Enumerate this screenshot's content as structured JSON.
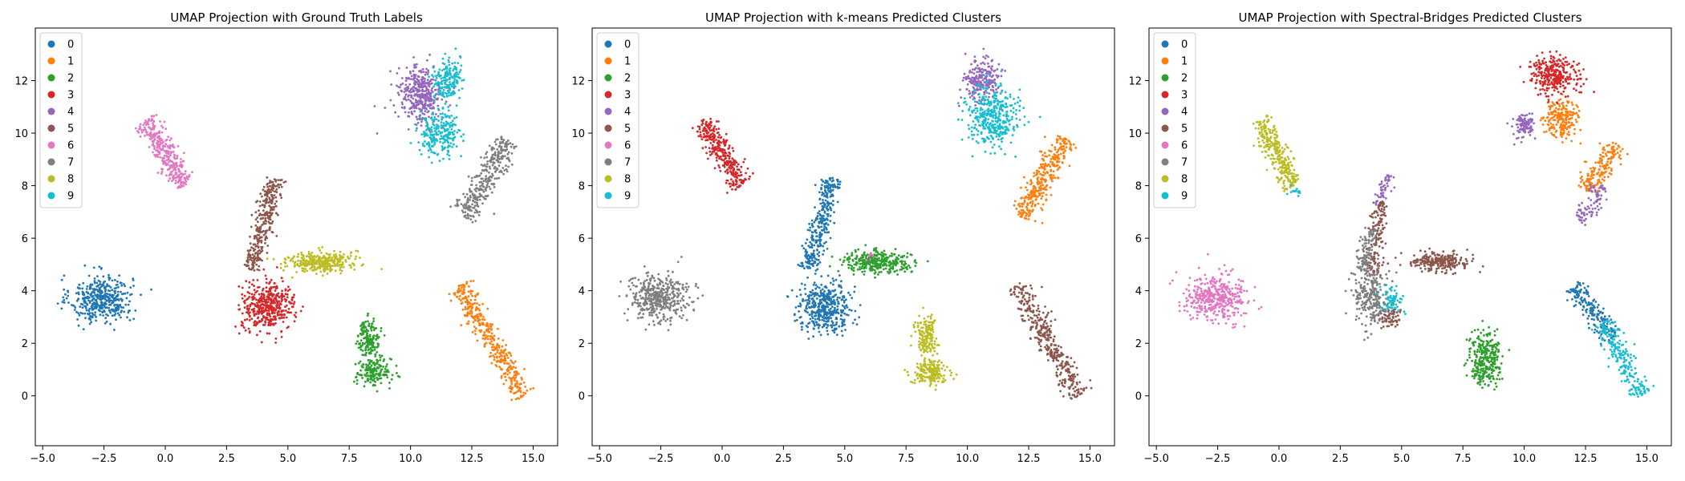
{
  "palette": [
    "#1f77b4",
    "#ff7f0e",
    "#2ca02c",
    "#d62728",
    "#9467bd",
    "#8c564b",
    "#e377c2",
    "#7f7f7f",
    "#bcbd22",
    "#17becf"
  ],
  "chart_data": [
    {
      "type": "scatter",
      "title": "UMAP Projection with Ground Truth Labels",
      "xlabel": "",
      "ylabel": "",
      "xlim": [
        -5.3,
        16.0
      ],
      "ylim": [
        -1.9,
        14.0
      ],
      "xticks": [
        -5.0,
        -2.5,
        0.0,
        2.5,
        5.0,
        7.5,
        10.0,
        12.5,
        15.0
      ],
      "xtick_labels": [
        "−5.0",
        "−2.5",
        "0.0",
        "2.5",
        "5.0",
        "7.5",
        "10.0",
        "12.5",
        "15.0"
      ],
      "yticks": [
        0,
        2,
        4,
        6,
        8,
        10,
        12
      ],
      "ytick_labels": [
        "0",
        "2",
        "4",
        "6",
        "8",
        "10",
        "12"
      ],
      "grid": false,
      "legend": "top-left",
      "legend_entries": [
        "0",
        "1",
        "2",
        "3",
        "4",
        "5",
        "6",
        "7",
        "8",
        "9"
      ],
      "series": [
        {
          "name": "0",
          "color_index": 0,
          "clusters": [
            {
              "cx": -2.6,
              "cy": 3.7,
              "rx": 1.4,
              "ry": 1.0,
              "n": 420
            }
          ]
        },
        {
          "name": "1",
          "color_index": 1,
          "clusters": [
            {
              "from": [
                12.0,
                4.2
              ],
              "to": [
                14.6,
                0.0
              ],
              "w": 0.45,
              "n": 380
            }
          ]
        },
        {
          "name": "2",
          "color_index": 2,
          "clusters": [
            {
              "cx": 8.3,
              "cy": 2.2,
              "rx": 0.5,
              "ry": 0.8,
              "n": 160
            },
            {
              "cx": 8.5,
              "cy": 0.9,
              "rx": 0.8,
              "ry": 0.6,
              "n": 170
            }
          ]
        },
        {
          "name": "3",
          "color_index": 3,
          "clusters": [
            {
              "cx": 4.2,
              "cy": 3.4,
              "rx": 1.2,
              "ry": 1.0,
              "n": 430
            }
          ]
        },
        {
          "name": "4",
          "color_index": 4,
          "clusters": [
            {
              "cx": 10.4,
              "cy": 11.5,
              "rx": 1.0,
              "ry": 1.2,
              "n": 380
            }
          ]
        },
        {
          "name": "5",
          "color_index": 5,
          "clusters": [
            {
              "from": [
                3.5,
                4.8
              ],
              "to": [
                4.5,
                8.3
              ],
              "w": 0.4,
              "n": 320
            }
          ]
        },
        {
          "name": "6",
          "color_index": 6,
          "clusters": [
            {
              "from": [
                -0.8,
                10.5
              ],
              "to": [
                0.8,
                8.0
              ],
              "w": 0.45,
              "n": 320
            }
          ]
        },
        {
          "name": "7",
          "color_index": 7,
          "clusters": [
            {
              "from": [
                12.2,
                6.8
              ],
              "to": [
                14.0,
                9.8
              ],
              "w": 0.5,
              "n": 320
            }
          ]
        },
        {
          "name": "8",
          "color_index": 8,
          "clusters": [
            {
              "cx": 6.3,
              "cy": 5.1,
              "rx": 1.5,
              "ry": 0.45,
              "n": 330
            }
          ]
        },
        {
          "name": "9",
          "color_index": 9,
          "clusters": [
            {
              "cx": 11.5,
              "cy": 12.0,
              "rx": 0.6,
              "ry": 0.9,
              "n": 180
            },
            {
              "cx": 11.2,
              "cy": 10.0,
              "rx": 0.9,
              "ry": 0.9,
              "n": 240
            }
          ]
        }
      ]
    },
    {
      "type": "scatter",
      "title": "UMAP Projection with k-means Predicted Clusters",
      "xlabel": "",
      "ylabel": "",
      "xlim": [
        -5.3,
        16.0
      ],
      "ylim": [
        -1.9,
        14.0
      ],
      "xticks": [
        -5.0,
        -2.5,
        0.0,
        2.5,
        5.0,
        7.5,
        10.0,
        12.5,
        15.0
      ],
      "xtick_labels": [
        "−5.0",
        "−2.5",
        "0.0",
        "2.5",
        "5.0",
        "7.5",
        "10.0",
        "12.5",
        "15.0"
      ],
      "yticks": [
        0,
        2,
        4,
        6,
        8,
        10,
        12
      ],
      "ytick_labels": [
        "0",
        "2",
        "4",
        "6",
        "8",
        "10",
        "12"
      ],
      "grid": false,
      "legend": "top-left",
      "legend_entries": [
        "0",
        "1",
        "2",
        "3",
        "4",
        "5",
        "6",
        "7",
        "8",
        "9"
      ],
      "series": [
        {
          "name": "0",
          "color_index": 0,
          "clusters": [
            {
              "cx": 4.2,
              "cy": 3.4,
              "rx": 1.2,
              "ry": 1.0,
              "n": 430
            },
            {
              "from": [
                3.5,
                4.8
              ],
              "to": [
                4.5,
                8.3
              ],
              "w": 0.4,
              "n": 320
            }
          ]
        },
        {
          "name": "1",
          "color_index": 1,
          "clusters": [
            {
              "from": [
                12.2,
                6.8
              ],
              "to": [
                14.0,
                9.8
              ],
              "w": 0.5,
              "n": 320
            }
          ]
        },
        {
          "name": "2",
          "color_index": 2,
          "clusters": [
            {
              "cx": 6.3,
              "cy": 5.1,
              "rx": 1.5,
              "ry": 0.45,
              "n": 330
            }
          ]
        },
        {
          "name": "3",
          "color_index": 3,
          "clusters": [
            {
              "from": [
                -0.8,
                10.5
              ],
              "to": [
                0.8,
                8.0
              ],
              "w": 0.45,
              "n": 320
            }
          ]
        },
        {
          "name": "4",
          "color_index": 4,
          "clusters": [
            {
              "cx": 10.6,
              "cy": 12.0,
              "rx": 0.8,
              "ry": 0.9,
              "n": 220
            }
          ]
        },
        {
          "name": "5",
          "color_index": 5,
          "clusters": [
            {
              "from": [
                12.0,
                4.2
              ],
              "to": [
                14.6,
                0.0
              ],
              "w": 0.45,
              "n": 380
            }
          ]
        },
        {
          "name": "6",
          "color_index": 6,
          "clusters": [
            {
              "cx": 6.0,
              "cy": 5.3,
              "rx": 0.3,
              "ry": 0.2,
              "n": 8
            }
          ]
        },
        {
          "name": "7",
          "color_index": 7,
          "clusters": [
            {
              "cx": -2.6,
              "cy": 3.7,
              "rx": 1.4,
              "ry": 1.0,
              "n": 420
            }
          ]
        },
        {
          "name": "8",
          "color_index": 8,
          "clusters": [
            {
              "cx": 8.3,
              "cy": 2.2,
              "rx": 0.5,
              "ry": 0.8,
              "n": 160
            },
            {
              "cx": 8.5,
              "cy": 0.9,
              "rx": 0.8,
              "ry": 0.6,
              "n": 170
            }
          ]
        },
        {
          "name": "9",
          "color_index": 9,
          "clusters": [
            {
              "cx": 11.0,
              "cy": 10.6,
              "rx": 1.2,
              "ry": 1.2,
              "n": 380
            }
          ]
        }
      ]
    },
    {
      "type": "scatter",
      "title": "UMAP Projection with Spectral-Bridges Predicted Clusters",
      "xlabel": "",
      "ylabel": "",
      "xlim": [
        -5.3,
        16.0
      ],
      "ylim": [
        -1.9,
        14.0
      ],
      "xticks": [
        -5.0,
        -2.5,
        0.0,
        2.5,
        5.0,
        7.5,
        10.0,
        12.5,
        15.0
      ],
      "xtick_labels": [
        "−5.0",
        "−2.5",
        "0.0",
        "2.5",
        "5.0",
        "7.5",
        "10.0",
        "12.5",
        "15.0"
      ],
      "yticks": [
        0,
        2,
        4,
        6,
        8,
        10,
        12
      ],
      "ytick_labels": [
        "0",
        "2",
        "4",
        "6",
        "8",
        "10",
        "12"
      ],
      "grid": false,
      "legend": "top-left",
      "legend_entries": [
        "0",
        "1",
        "2",
        "3",
        "4",
        "5",
        "6",
        "7",
        "8",
        "9"
      ],
      "series": [
        {
          "name": "0",
          "color_index": 0,
          "clusters": [
            {
              "from": [
                12.0,
                4.2
              ],
              "to": [
                13.6,
                2.2
              ],
              "w": 0.45,
              "n": 200
            }
          ]
        },
        {
          "name": "1",
          "color_index": 1,
          "clusters": [
            {
              "cx": 11.5,
              "cy": 10.6,
              "rx": 0.8,
              "ry": 0.8,
              "n": 200
            },
            {
              "from": [
                12.5,
                7.8
              ],
              "to": [
                13.8,
                9.6
              ],
              "w": 0.45,
              "n": 180
            }
          ]
        },
        {
          "name": "2",
          "color_index": 2,
          "clusters": [
            {
              "cx": 8.4,
              "cy": 1.4,
              "rx": 0.7,
              "ry": 1.1,
              "n": 300
            }
          ]
        },
        {
          "name": "3",
          "color_index": 3,
          "clusters": [
            {
              "cx": 11.2,
              "cy": 12.2,
              "rx": 1.1,
              "ry": 0.8,
              "n": 300
            }
          ]
        },
        {
          "name": "4",
          "color_index": 4,
          "clusters": [
            {
              "cx": 10.0,
              "cy": 10.3,
              "rx": 0.5,
              "ry": 0.5,
              "n": 100
            },
            {
              "from": [
                12.3,
                6.6
              ],
              "to": [
                13.2,
                8.0
              ],
              "w": 0.4,
              "n": 90
            },
            {
              "from": [
                4.0,
                7.2
              ],
              "to": [
                4.5,
                8.4
              ],
              "w": 0.25,
              "n": 50
            }
          ]
        },
        {
          "name": "5",
          "color_index": 5,
          "clusters": [
            {
              "cx": 6.5,
              "cy": 5.1,
              "rx": 1.3,
              "ry": 0.4,
              "n": 250
            },
            {
              "from": [
                3.8,
                4.6
              ],
              "to": [
                4.2,
                7.4
              ],
              "w": 0.35,
              "n": 150
            },
            {
              "cx": 4.5,
              "cy": 3.0,
              "rx": 0.6,
              "ry": 0.5,
              "n": 80
            }
          ]
        },
        {
          "name": "6",
          "color_index": 6,
          "clusters": [
            {
              "cx": -2.6,
              "cy": 3.7,
              "rx": 1.4,
              "ry": 1.0,
              "n": 420
            }
          ]
        },
        {
          "name": "7",
          "color_index": 7,
          "clusters": [
            {
              "cx": 3.7,
              "cy": 3.8,
              "rx": 0.8,
              "ry": 1.3,
              "n": 260
            },
            {
              "from": [
                3.4,
                4.8
              ],
              "to": [
                3.8,
                6.4
              ],
              "w": 0.3,
              "n": 80
            }
          ]
        },
        {
          "name": "8",
          "color_index": 8,
          "clusters": [
            {
              "from": [
                -0.8,
                10.5
              ],
              "to": [
                0.6,
                8.0
              ],
              "w": 0.45,
              "n": 300
            }
          ]
        },
        {
          "name": "9",
          "color_index": 9,
          "clusters": [
            {
              "from": [
                13.2,
                2.8
              ],
              "to": [
                14.8,
                0.0
              ],
              "w": 0.45,
              "n": 220
            },
            {
              "cx": 4.6,
              "cy": 3.6,
              "rx": 0.5,
              "ry": 0.6,
              "n": 70
            },
            {
              "cx": 0.7,
              "cy": 7.8,
              "rx": 0.3,
              "ry": 0.2,
              "n": 15
            }
          ]
        }
      ]
    }
  ]
}
